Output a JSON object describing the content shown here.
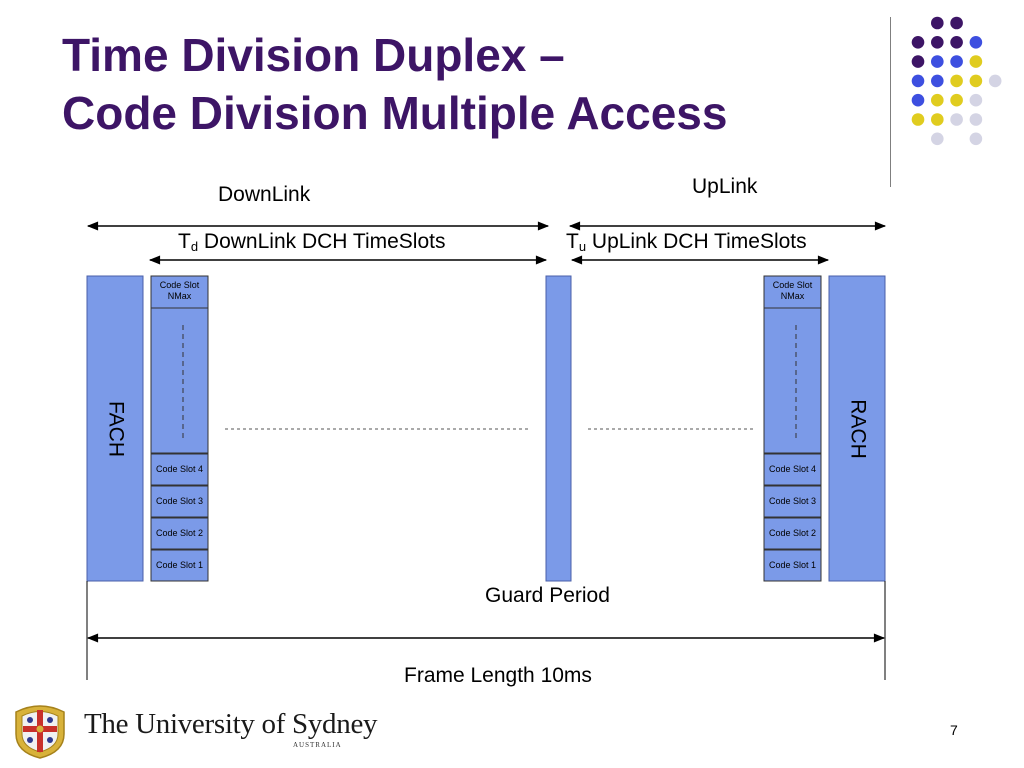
{
  "slide": {
    "title_line1": "Time Division Duplex –",
    "title_line2": "Code Division Multiple Access",
    "page_number": "7"
  },
  "colors": {
    "title": "#3d1566",
    "block_fill": "#7b9ae8",
    "dot_purple": "#3d1566",
    "dot_blue": "#3d4fe0",
    "dot_yellow": "#e0cc1f",
    "dot_gray": "#d4d4e4"
  },
  "decoration": {
    "dot_grid_colors": [
      [
        "none",
        "purple",
        "purple",
        "none",
        "none"
      ],
      [
        "purple",
        "purple",
        "purple",
        "blue",
        "none"
      ],
      [
        "purple",
        "blue",
        "blue",
        "yellow",
        "none"
      ],
      [
        "blue",
        "blue",
        "yellow",
        "yellow",
        "gray"
      ],
      [
        "blue",
        "yellow",
        "yellow",
        "gray",
        "none"
      ],
      [
        "yellow",
        "yellow",
        "gray",
        "gray",
        "none"
      ],
      [
        "none",
        "gray",
        "none",
        "gray",
        "none"
      ]
    ]
  },
  "diagram": {
    "downlink_label": "DownLink",
    "uplink_label": "UpLink",
    "td_symbol": "T",
    "td_subscript": "d",
    "td_text": "DownLink DCH TimeSlots",
    "tu_symbol": "T",
    "tu_subscript": "u",
    "tu_text": "UpLink DCH TimeSlots",
    "fach_label": "FACH",
    "rach_label": "RACH",
    "guard_period_label": "Guard Period",
    "frame_length_label": "Frame Length 10ms",
    "code_slot_top_line1": "Code Slot",
    "code_slot_top_line2": "NMax",
    "code_slots": [
      "Code Slot 4",
      "Code Slot 3",
      "Code Slot 2",
      "Code Slot 1"
    ]
  },
  "footer": {
    "university_name": "The University of Sydney",
    "university_sub": "AUSTRALIA"
  }
}
